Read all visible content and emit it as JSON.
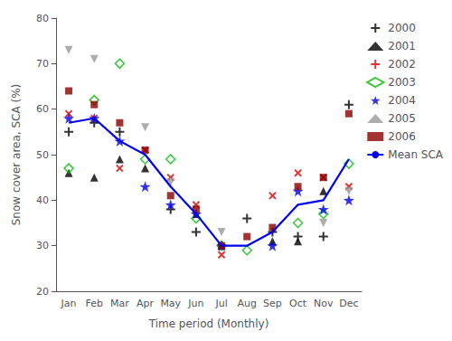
{
  "chart_data": {
    "type": "scatter",
    "xlabel": "Time period (Monthly)",
    "ylabel": "Snow cover area, SCA (%)",
    "categories": [
      "Jan",
      "Feb",
      "Mar",
      "Apr",
      "May",
      "Jun",
      "Jul",
      "Aug",
      "Sep",
      "Oct",
      "Nov",
      "Dec"
    ],
    "series": [
      {
        "name": "2000",
        "color": "#000000",
        "marker": "plus",
        "values": [
          55,
          57,
          55,
          null,
          38,
          33,
          null,
          36,
          33,
          32,
          32,
          61
        ]
      },
      {
        "name": "2001",
        "color": "#000000",
        "marker": "triangle_up",
        "values": [
          46,
          45,
          49,
          47,
          null,
          37,
          30,
          null,
          31,
          31,
          42,
          null
        ]
      },
      {
        "name": "2002",
        "color": "#dd0000",
        "marker": "x",
        "values": [
          59,
          58,
          47,
          51,
          45,
          39,
          28,
          null,
          41,
          46,
          45,
          43
        ]
      },
      {
        "name": "2003",
        "color": "#00bb00",
        "marker": "open_diamond",
        "values": [
          47,
          62,
          70,
          49,
          49,
          36,
          30,
          29,
          null,
          35,
          37,
          48
        ]
      },
      {
        "name": "2004",
        "color": "#0000ee",
        "marker": "star",
        "values": [
          58,
          58,
          53,
          43,
          39,
          37,
          30,
          null,
          30,
          42,
          38,
          40
        ]
      },
      {
        "name": "2005",
        "color": "#999999",
        "marker": "triangle_down",
        "values": [
          73,
          71,
          null,
          56,
          44,
          null,
          33,
          null,
          null,
          null,
          35,
          42
        ]
      },
      {
        "name": "2006",
        "color": "#8b0000",
        "marker": "square",
        "values": [
          64,
          61,
          57,
          51,
          41,
          38,
          30,
          32,
          34,
          43,
          45,
          59
        ]
      },
      {
        "name": "Mean SCA",
        "type": "line",
        "color": "#0000ee",
        "line_style": "solid",
        "values": [
          57,
          58,
          53,
          50,
          43,
          37,
          30,
          30,
          33,
          39,
          40,
          49
        ]
      }
    ],
    "ylim": [
      20,
      80
    ],
    "yticks": [
      20,
      30,
      40,
      50,
      60,
      70,
      80
    ],
    "grid": false,
    "legend": "upper right"
  }
}
